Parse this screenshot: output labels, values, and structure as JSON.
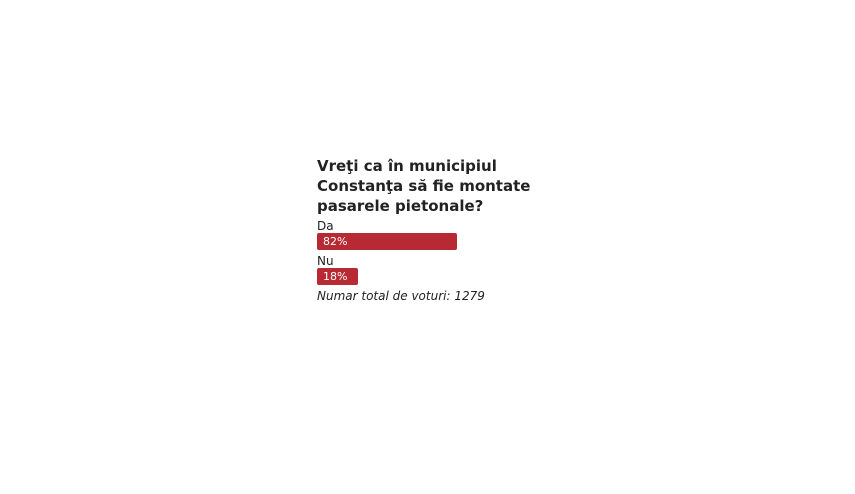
{
  "poll": {
    "question": "Vreţi ca în municipiul Constanţa să fie montate pasarele pietonale?",
    "options": [
      {
        "label": "Da",
        "percent": 82,
        "percent_label": "82%"
      },
      {
        "label": "Nu",
        "percent": 18,
        "percent_label": "18%"
      }
    ],
    "total": "Numar total de voturi: 1279",
    "bar_color": "#b72933"
  }
}
